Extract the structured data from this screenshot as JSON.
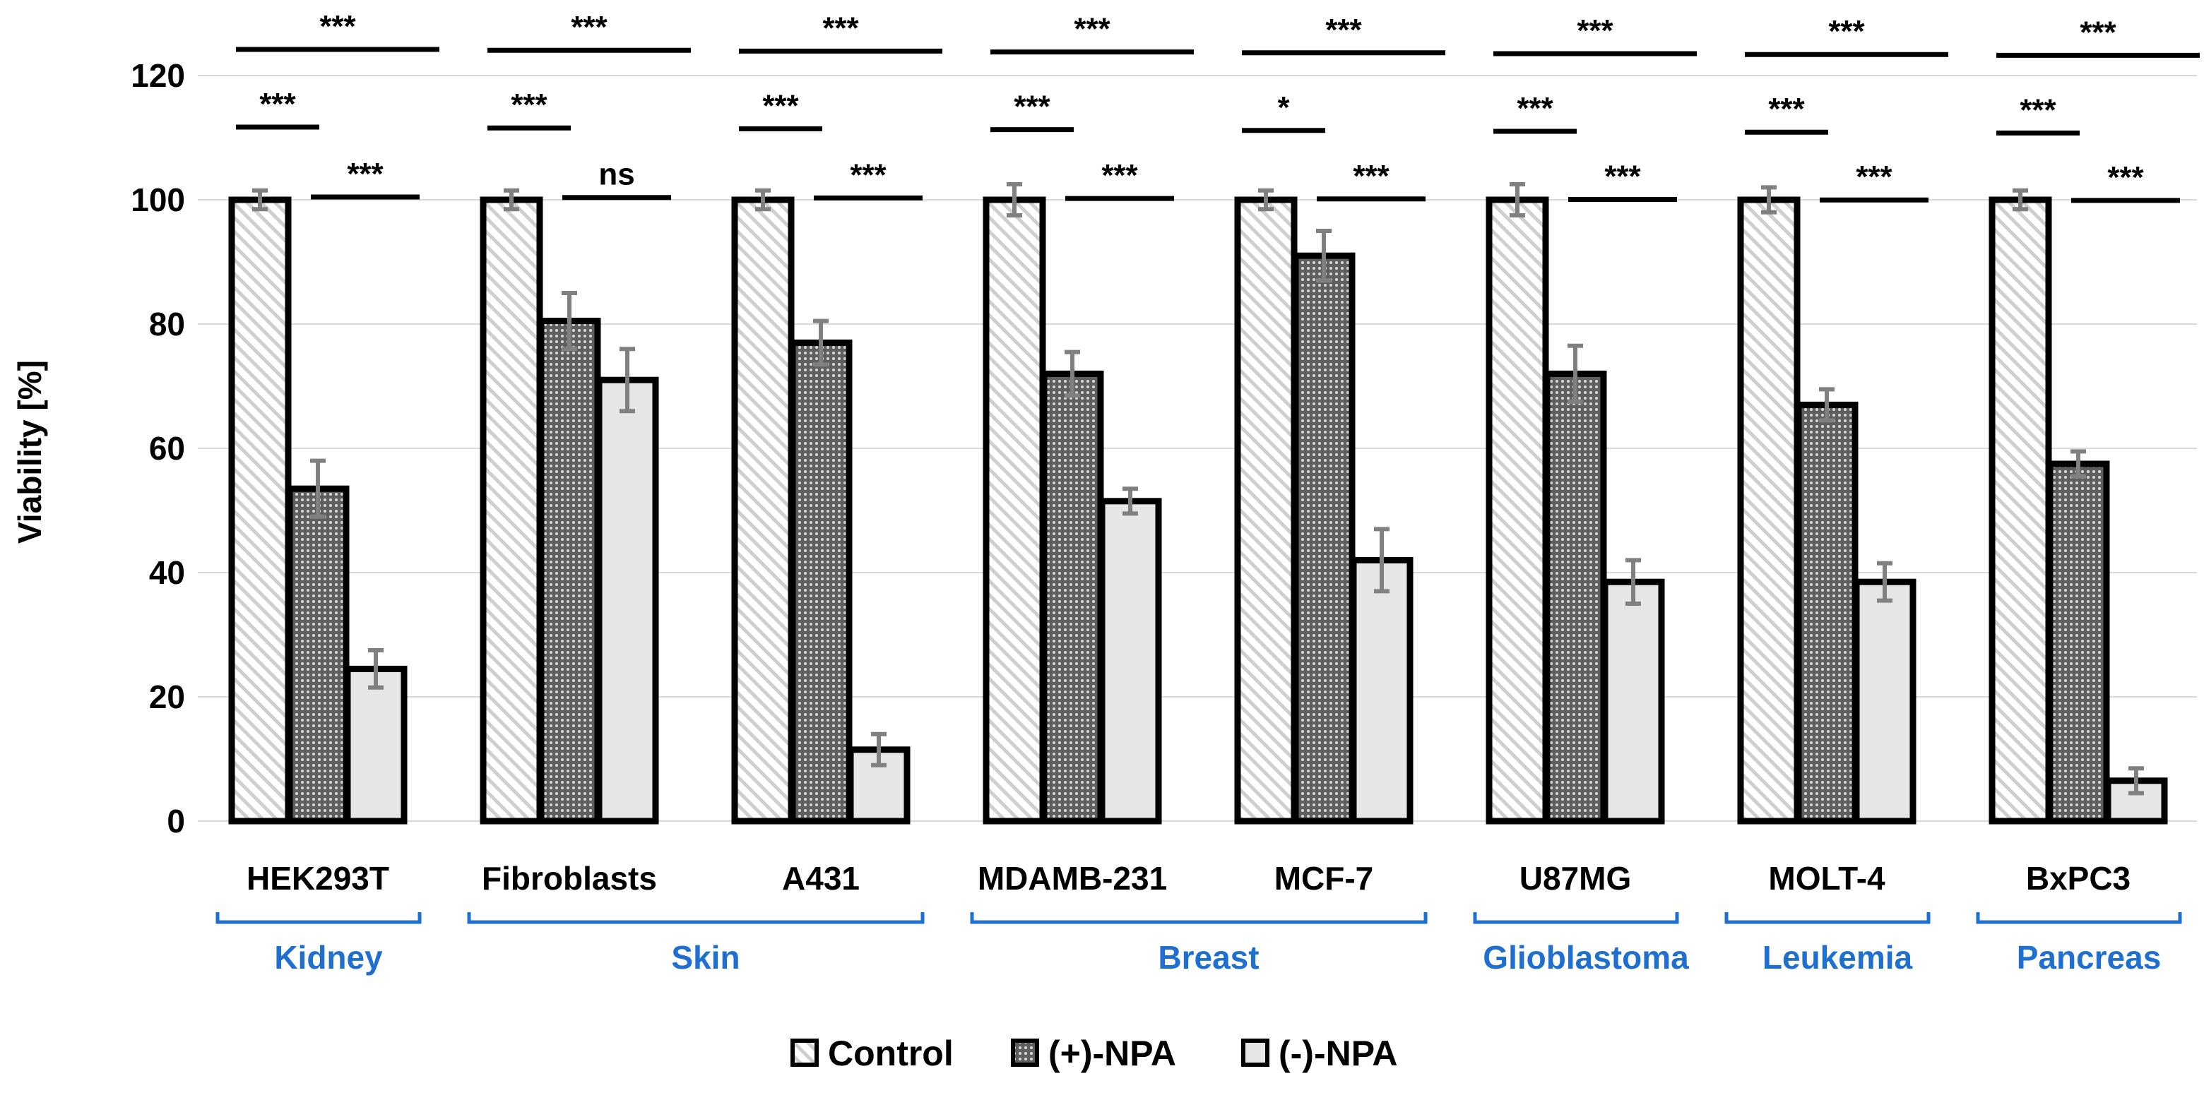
{
  "chart_data": {
    "type": "bar",
    "ylabel": "Viability [%]",
    "ylim": [
      0,
      120
    ],
    "yticks": [
      0,
      20,
      40,
      60,
      80,
      100,
      120
    ],
    "grid": true,
    "categories": [
      "HEK293T",
      "Fibroblasts",
      "A431",
      "MDAMB-231",
      "MCF-7",
      "U87MG",
      "MOLT-4",
      "BxPC3"
    ],
    "series": [
      {
        "name": "Control",
        "values": [
          100,
          100,
          100,
          100,
          100,
          100,
          100,
          100
        ],
        "errors": [
          1.5,
          1.5,
          1.5,
          2.5,
          1.5,
          2.5,
          2,
          1.5
        ],
        "pattern": "hatch"
      },
      {
        "name": "(+)-NPA",
        "values": [
          53.5,
          80.5,
          77,
          72,
          91,
          72,
          67,
          57.5
        ],
        "errors": [
          4.5,
          4.5,
          3.5,
          3.5,
          4,
          4.5,
          2.5,
          2
        ],
        "pattern": "dots"
      },
      {
        "name": "(-)-NPA",
        "values": [
          24.5,
          71,
          11.5,
          51.5,
          42,
          38.5,
          38.5,
          6.5
        ],
        "errors": [
          3,
          5,
          2.5,
          2,
          5,
          3.5,
          3,
          2
        ],
        "pattern": "solid"
      }
    ],
    "groups": [
      {
        "label": "Kidney",
        "members": [
          "HEK293T"
        ]
      },
      {
        "label": "Skin",
        "members": [
          "Fibroblasts",
          "A431"
        ]
      },
      {
        "label": "Breast",
        "members": [
          "MDAMB-231",
          "MCF-7"
        ]
      },
      {
        "label": "Glioblastoma",
        "members": [
          "U87MG"
        ]
      },
      {
        "label": "Leukemia",
        "members": [
          "MOLT-4"
        ]
      },
      {
        "label": "Pancreas",
        "members": [
          "BxPC3"
        ]
      }
    ],
    "significance": [
      {
        "category": "HEK293T",
        "control_vs_plus": "***",
        "plus_vs_minus": "***",
        "control_vs_minus": "***"
      },
      {
        "category": "Fibroblasts",
        "control_vs_plus": "***",
        "plus_vs_minus": "ns",
        "control_vs_minus": "***"
      },
      {
        "category": "A431",
        "control_vs_plus": "***",
        "plus_vs_minus": "***",
        "control_vs_minus": "***"
      },
      {
        "category": "MDAMB-231",
        "control_vs_plus": "***",
        "plus_vs_minus": "***",
        "control_vs_minus": "***"
      },
      {
        "category": "MCF-7",
        "control_vs_plus": "*",
        "plus_vs_minus": "***",
        "control_vs_minus": "***"
      },
      {
        "category": "U87MG",
        "control_vs_plus": "***",
        "plus_vs_minus": "***",
        "control_vs_minus": "***"
      },
      {
        "category": "MOLT-4",
        "control_vs_plus": "***",
        "plus_vs_minus": "***",
        "control_vs_minus": "***"
      },
      {
        "category": "BxPC3",
        "control_vs_plus": "***",
        "plus_vs_minus": "***",
        "control_vs_minus": "***"
      }
    ],
    "legend": {
      "placement": "bottom-center",
      "entries": [
        "Control",
        "(+)-NPA",
        "(-)-NPA"
      ]
    },
    "colors": {
      "tissue_label": "#1f6fd0",
      "bar_outline": "#000000",
      "minus_fill": "#e6e6e6",
      "error_bar": "#808080",
      "grid": "#d9d9d9"
    }
  }
}
